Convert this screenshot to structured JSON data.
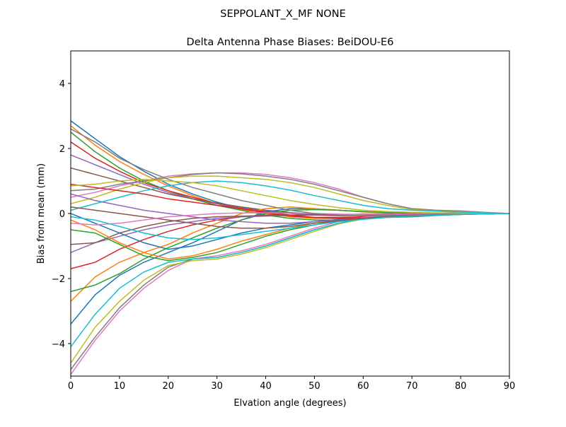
{
  "chart_data": {
    "type": "line",
    "suptitle": "SEPPOLANT_X_MF  NONE",
    "title": "Delta Antenna Phase Biases: BeiDOU-E6",
    "xlabel": "Elvation angle (degrees)",
    "ylabel": "Bias from mean (mm)",
    "xlim": [
      0,
      90
    ],
    "ylim": [
      -5,
      5
    ],
    "xticks": [
      0,
      10,
      20,
      30,
      40,
      50,
      60,
      70,
      80,
      90
    ],
    "yticks": [
      -4,
      -2,
      0,
      2,
      4
    ],
    "grid": false,
    "colors": [
      "#1f77b4",
      "#ff7f0e",
      "#2ca02c",
      "#d62728",
      "#9467bd",
      "#8c564b",
      "#e377c2",
      "#7f7f7f",
      "#bcbd22",
      "#17becf"
    ],
    "x": [
      0,
      5,
      10,
      15,
      20,
      25,
      30,
      35,
      40,
      45,
      50,
      55,
      60,
      65,
      70,
      75,
      80,
      85,
      90
    ],
    "series": [
      {
        "values": [
          2.85,
          2.3,
          1.75,
          1.3,
          0.9,
          0.6,
          0.35,
          0.15,
          0,
          -0.1,
          -0.15,
          -0.15,
          -0.12,
          -0.08,
          -0.05,
          -0.03,
          -0.02,
          -0.01,
          0
        ]
      },
      {
        "values": [
          2.7,
          2.1,
          1.6,
          1.2,
          0.85,
          0.55,
          0.3,
          0.12,
          0,
          -0.1,
          -0.15,
          -0.15,
          -0.12,
          -0.08,
          -0.05,
          -0.03,
          -0.02,
          -0.01,
          0
        ]
      },
      {
        "values": [
          2.5,
          1.9,
          1.4,
          1.0,
          0.7,
          0.45,
          0.25,
          0.1,
          -0.05,
          -0.15,
          -0.2,
          -0.2,
          -0.15,
          -0.1,
          -0.06,
          -0.04,
          -0.02,
          -0.01,
          0
        ]
      },
      {
        "values": [
          2.2,
          1.7,
          1.3,
          0.95,
          0.7,
          0.5,
          0.3,
          0.15,
          0.02,
          -0.08,
          -0.12,
          -0.12,
          -0.1,
          -0.07,
          -0.04,
          -0.02,
          -0.01,
          0,
          0
        ]
      },
      {
        "values": [
          1.8,
          1.5,
          1.2,
          0.9,
          0.65,
          0.45,
          0.3,
          0.18,
          0.08,
          0,
          -0.05,
          -0.07,
          -0.06,
          -0.04,
          -0.03,
          -0.02,
          -0.01,
          0,
          0
        ]
      },
      {
        "values": [
          1.4,
          1.2,
          1.0,
          0.8,
          0.6,
          0.45,
          0.32,
          0.2,
          0.1,
          0.03,
          -0.02,
          -0.05,
          -0.05,
          -0.04,
          -0.03,
          -0.02,
          -0.01,
          0,
          0
        ]
      },
      {
        "values": [
          -4.95,
          -3.9,
          -3.0,
          -2.3,
          -1.75,
          -1.4,
          -1.3,
          -1.15,
          -0.95,
          -0.7,
          -0.45,
          -0.25,
          -0.12,
          -0.05,
          0,
          0.02,
          0.02,
          0.01,
          0
        ]
      },
      {
        "values": [
          -4.8,
          -3.8,
          -2.9,
          -2.2,
          -1.65,
          -1.4,
          -1.35,
          -1.2,
          -1.0,
          -0.75,
          -0.5,
          -0.3,
          -0.15,
          -0.07,
          -0.02,
          0,
          0.01,
          0,
          0
        ]
      },
      {
        "values": [
          -4.6,
          -3.5,
          -2.7,
          -2.05,
          -1.6,
          -1.45,
          -1.4,
          -1.25,
          -1.05,
          -0.8,
          -0.55,
          -0.32,
          -0.17,
          -0.08,
          -0.03,
          0,
          0.01,
          0,
          0
        ]
      },
      {
        "values": [
          -4.1,
          -3.1,
          -2.3,
          -1.8,
          -1.5,
          -1.4,
          -1.35,
          -1.2,
          -1.0,
          -0.75,
          -0.5,
          -0.3,
          -0.15,
          -0.07,
          -0.02,
          0,
          0,
          0,
          0
        ]
      },
      {
        "values": [
          -3.4,
          -2.5,
          -1.9,
          -1.5,
          -1.2,
          -0.9,
          -0.55,
          -0.2,
          0.05,
          0.15,
          0.15,
          0.1,
          0.05,
          0.02,
          0,
          0,
          0,
          0,
          0
        ]
      },
      {
        "values": [
          -2.7,
          -1.95,
          -1.5,
          -1.2,
          -0.95,
          -0.6,
          -0.3,
          0,
          0.15,
          0.2,
          0.15,
          0.1,
          0.05,
          0.02,
          0,
          0,
          0,
          0,
          0
        ]
      },
      {
        "values": [
          -2.4,
          -2.2,
          -1.85,
          -1.4,
          -1.05,
          -0.75,
          -0.45,
          -0.2,
          0,
          0.1,
          0.12,
          0.1,
          0.06,
          0.03,
          0.01,
          0,
          0,
          0,
          0
        ]
      },
      {
        "values": [
          -1.7,
          -1.5,
          -1.1,
          -0.8,
          -0.55,
          -0.35,
          -0.2,
          -0.1,
          -0.05,
          -0.05,
          -0.05,
          -0.05,
          -0.04,
          -0.03,
          -0.02,
          -0.01,
          0,
          0,
          0
        ]
      },
      {
        "values": [
          -1.2,
          -0.9,
          -0.7,
          -0.5,
          -0.35,
          -0.25,
          -0.15,
          -0.1,
          -0.08,
          -0.06,
          -0.05,
          -0.04,
          -0.03,
          -0.02,
          -0.01,
          0,
          0,
          0,
          0
        ]
      },
      {
        "values": [
          -0.95,
          -0.9,
          -0.6,
          -0.4,
          -0.25,
          -0.15,
          -0.1,
          -0.08,
          -0.06,
          -0.05,
          -0.04,
          -0.03,
          -0.02,
          -0.01,
          0,
          0,
          0,
          0,
          0
        ]
      },
      {
        "values": [
          0.5,
          0.65,
          0.85,
          1.0,
          1.15,
          1.22,
          1.25,
          1.25,
          1.2,
          1.1,
          0.95,
          0.75,
          0.5,
          0.3,
          0.15,
          0.1,
          0.08,
          0.04,
          0
        ]
      },
      {
        "values": [
          0.7,
          0.75,
          0.9,
          1.0,
          1.1,
          1.2,
          1.25,
          1.22,
          1.15,
          1.05,
          0.9,
          0.7,
          0.5,
          0.3,
          0.15,
          0.1,
          0.07,
          0.03,
          0
        ]
      },
      {
        "values": [
          0.3,
          0.5,
          0.75,
          0.95,
          1.1,
          1.15,
          1.15,
          1.1,
          1.05,
          0.95,
          0.8,
          0.6,
          0.4,
          0.25,
          0.12,
          0.08,
          0.05,
          0.02,
          0
        ]
      },
      {
        "values": [
          0.1,
          0.3,
          0.5,
          0.7,
          0.85,
          0.95,
          1.0,
          0.95,
          0.85,
          0.72,
          0.55,
          0.4,
          0.25,
          0.15,
          0.1,
          0.07,
          0.04,
          0.02,
          0
        ]
      },
      {
        "values": [
          0,
          -0.3,
          -0.6,
          -0.9,
          -1.1,
          -1.0,
          -0.8,
          -0.6,
          -0.45,
          -0.35,
          -0.25,
          -0.18,
          -0.15,
          -0.12,
          -0.1,
          -0.06,
          -0.03,
          -0.01,
          0
        ]
      },
      {
        "values": [
          -0.2,
          -0.5,
          -0.9,
          -1.2,
          -1.4,
          -1.3,
          -1.1,
          -0.85,
          -0.65,
          -0.45,
          -0.3,
          -0.2,
          -0.15,
          -0.12,
          -0.08,
          -0.05,
          -0.03,
          -0.01,
          0
        ]
      },
      {
        "values": [
          -0.5,
          -0.6,
          -0.95,
          -1.3,
          -1.45,
          -1.35,
          -1.2,
          -0.95,
          -0.7,
          -0.5,
          -0.35,
          -0.22,
          -0.15,
          -0.12,
          -0.08,
          -0.05,
          -0.03,
          -0.01,
          0
        ]
      },
      {
        "values": [
          0.9,
          0.8,
          0.7,
          0.6,
          0.45,
          0.35,
          0.25,
          0.15,
          0.05,
          -0.05,
          -0.12,
          -0.15,
          -0.14,
          -0.1,
          -0.06,
          -0.04,
          -0.02,
          -0.01,
          0
        ]
      },
      {
        "values": [
          0.6,
          0.4,
          0.25,
          0.1,
          0,
          -0.1,
          -0.2,
          -0.25,
          -0.3,
          -0.3,
          -0.25,
          -0.2,
          -0.15,
          -0.1,
          -0.06,
          -0.04,
          -0.02,
          -0.01,
          0
        ]
      },
      {
        "values": [
          0.2,
          0.1,
          0,
          -0.1,
          -0.2,
          -0.3,
          -0.4,
          -0.45,
          -0.45,
          -0.4,
          -0.3,
          -0.22,
          -0.15,
          -0.1,
          -0.06,
          -0.04,
          -0.02,
          -0.01,
          0
        ]
      },
      {
        "values": [
          -0.3,
          -0.35,
          -0.3,
          -0.2,
          -0.1,
          -0.05,
          0,
          0.02,
          0.02,
          0.01,
          0,
          -0.02,
          -0.03,
          -0.02,
          -0.01,
          0,
          0,
          0,
          0
        ]
      },
      {
        "values": [
          2.6,
          2.2,
          1.7,
          1.35,
          1.05,
          0.8,
          0.6,
          0.4,
          0.25,
          0.1,
          0,
          -0.05,
          -0.07,
          -0.06,
          -0.04,
          -0.02,
          -0.01,
          0,
          0
        ]
      },
      {
        "values": [
          0.85,
          0.9,
          1.0,
          1.05,
          1.0,
          0.95,
          0.85,
          0.7,
          0.55,
          0.4,
          0.28,
          0.18,
          0.1,
          0.06,
          0.04,
          0.02,
          0.01,
          0,
          0
        ]
      },
      {
        "values": [
          -0.1,
          -0.2,
          -0.4,
          -0.6,
          -0.75,
          -0.8,
          -0.75,
          -0.65,
          -0.55,
          -0.45,
          -0.35,
          -0.25,
          -0.18,
          -0.12,
          -0.08,
          -0.05,
          -0.03,
          -0.01,
          0
        ]
      }
    ]
  }
}
